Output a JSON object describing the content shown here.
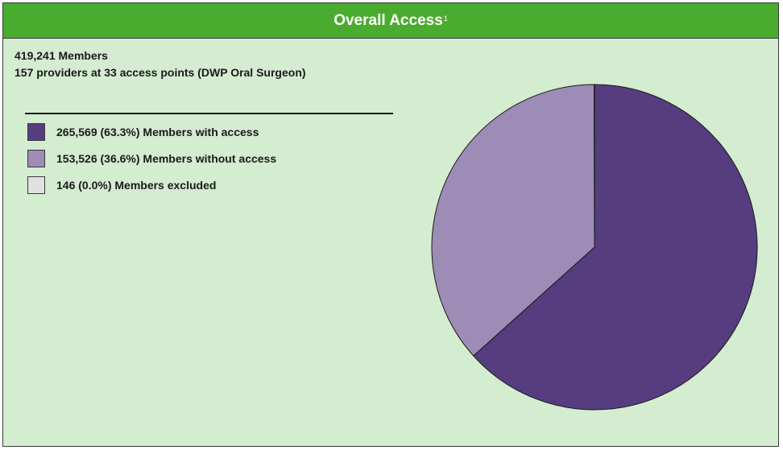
{
  "header": {
    "title": "Overall Access",
    "footnote": "1"
  },
  "summary": {
    "members": "419,241 Members",
    "providers": "157 providers at 33 access points (DWP Oral Surgeon)"
  },
  "legend": [
    {
      "label": "265,569 (63.3%) Members with access",
      "color": "#563d7f"
    },
    {
      "label": "153,526 (36.6%) Members without access",
      "color": "#9d8cb5"
    },
    {
      "label": "146 (0.0%) Members excluded",
      "color": "#e0e0e0"
    }
  ],
  "chart_data": {
    "type": "pie",
    "categories": [
      "Members with access",
      "Members without access",
      "Members excluded"
    ],
    "values": [
      265569,
      153526,
      146
    ],
    "percentages": [
      63.3,
      36.6,
      0.0
    ],
    "colors": [
      "#563d7f",
      "#9d8cb5",
      "#e0e0e0"
    ],
    "legend_position": "left"
  }
}
